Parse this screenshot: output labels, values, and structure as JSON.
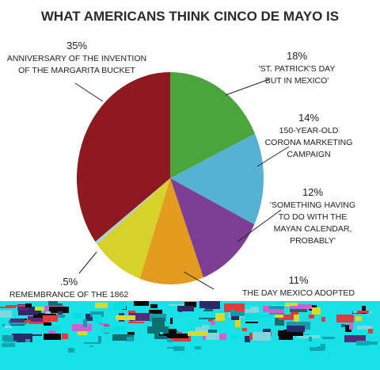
{
  "chart_data": {
    "type": "pie",
    "title": "WHAT AMERICANS THINK CINCO DE MAYO IS",
    "slices": [
      {
        "value": 18,
        "pct_label": "18%",
        "lines": [
          "'ST. PATRICK'S DAY",
          "BUT IN MEXICO'"
        ],
        "color": "#4aa63c"
      },
      {
        "value": 14,
        "pct_label": "14%",
        "lines": [
          "150-YEAR-OLD",
          "CORONA MARKETING",
          "CAMPAIGN"
        ],
        "color": "#55b2d2"
      },
      {
        "value": 12,
        "pct_label": "12%",
        "lines": [
          "'SOMETHING HAVING",
          "TO DO WITH THE",
          "MAYAN CALENDAR,",
          "PROBABLY'"
        ],
        "color": "#7d3f93"
      },
      {
        "value": 11,
        "pct_label": "11%",
        "lines": [
          "THE DAY MEXICO ADOPTED"
        ],
        "color": "#e39c1f"
      },
      {
        "value": 9,
        "pct_label": "",
        "lines": [],
        "color": "#d8d12a"
      },
      {
        "value": 0.5,
        "pct_label": ".5%",
        "lines": [
          "REMEMBRANCE OF THE 1862"
        ],
        "color": "#a9d0d6"
      },
      {
        "value": 35,
        "pct_label": "35%",
        "lines": [
          "ANNIVERSARY OF THE INVENTION",
          "OF THE MARGARITA BUCKET"
        ],
        "color": "#8e1a20"
      }
    ],
    "legend": "none"
  }
}
